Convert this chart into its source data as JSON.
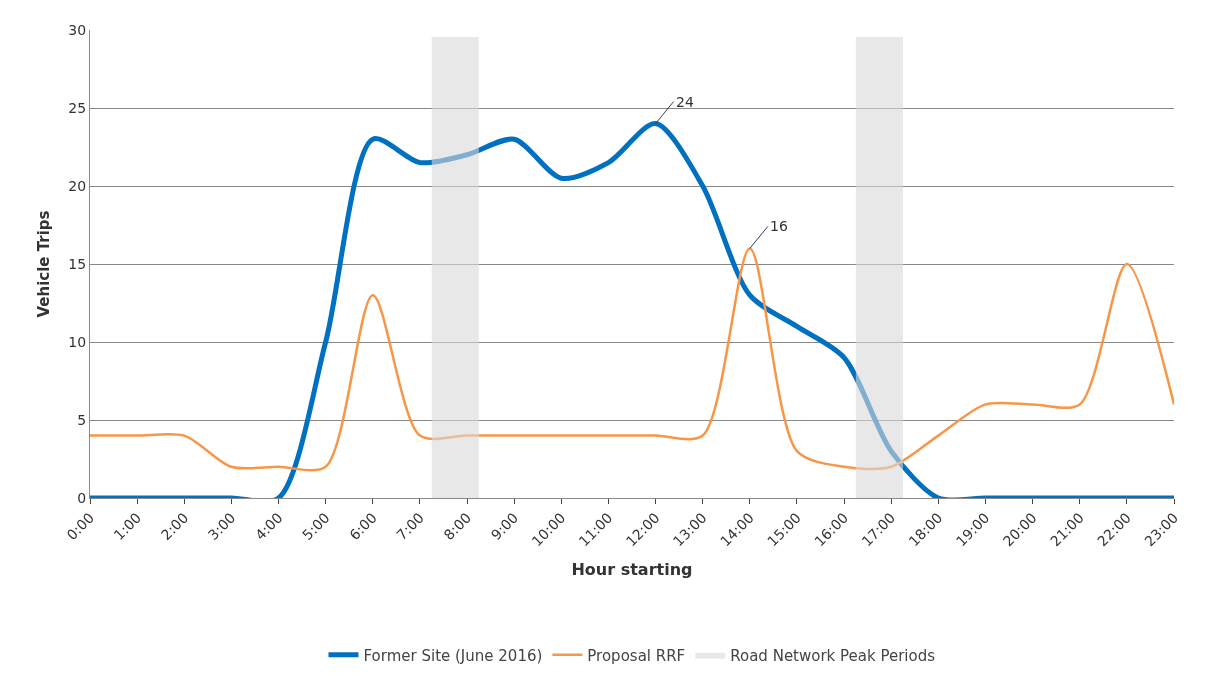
{
  "chart_data": {
    "type": "line",
    "xlabel": "Hour starting",
    "ylabel": "Vehicle Trips",
    "x": [
      0,
      1,
      2,
      3,
      4,
      5,
      6,
      7,
      8,
      9,
      10,
      11,
      12,
      13,
      14,
      15,
      16,
      17,
      18,
      19,
      20,
      21,
      22,
      23
    ],
    "xlim": [
      0,
      23
    ],
    "xticks": [
      {
        "value": 0,
        "label": "0:00"
      },
      {
        "value": 1,
        "label": "1:00"
      },
      {
        "value": 2,
        "label": "2:00"
      },
      {
        "value": 3,
        "label": "3:00"
      },
      {
        "value": 4,
        "label": "4:00"
      },
      {
        "value": 5,
        "label": "5:00"
      },
      {
        "value": 6,
        "label": "6:00"
      },
      {
        "value": 7,
        "label": "7:00"
      },
      {
        "value": 8,
        "label": "8:00"
      },
      {
        "value": 9,
        "label": "9:00"
      },
      {
        "value": 10,
        "label": "10:00"
      },
      {
        "value": 11,
        "label": "11:00"
      },
      {
        "value": 12,
        "label": "12:00"
      },
      {
        "value": 13,
        "label": "13:00"
      },
      {
        "value": 14,
        "label": "14:00"
      },
      {
        "value": 15,
        "label": "15:00"
      },
      {
        "value": 16,
        "label": "16:00"
      },
      {
        "value": 17,
        "label": "17:00"
      },
      {
        "value": 18,
        "label": "18:00"
      },
      {
        "value": 19,
        "label": "19:00"
      },
      {
        "value": 20,
        "label": "20:00"
      },
      {
        "value": 21,
        "label": "21:00"
      },
      {
        "value": 22,
        "label": "22:00"
      },
      {
        "value": 23,
        "label": "23:00"
      }
    ],
    "ylim": [
      0,
      30
    ],
    "yticks": [
      0,
      5,
      10,
      15,
      20,
      25,
      30
    ],
    "grid": "y",
    "legend": "bottom",
    "series": [
      {
        "name": "Former Site (June 2016)",
        "color": "#0070c0",
        "values": [
          0,
          0,
          0,
          0,
          0,
          10,
          23,
          21.5,
          22,
          23,
          20.5,
          21.5,
          24,
          20,
          13,
          11,
          9,
          3,
          0,
          0,
          0,
          0,
          0,
          0
        ]
      },
      {
        "name": "Proposal RRF",
        "color": "#f79646",
        "values": [
          4,
          4,
          4,
          2,
          2,
          2,
          13,
          4,
          4,
          4,
          4,
          4,
          4,
          4,
          16,
          3,
          2,
          2,
          4,
          6,
          6,
          6,
          15,
          6
        ]
      }
    ],
    "bands": [
      {
        "axis": "x",
        "from": 7.25,
        "to": 8.25,
        "label": "Road Network Peak Periods",
        "color": "#d9d9d9"
      },
      {
        "axis": "x",
        "from": 16.25,
        "to": 17.25,
        "color": "#d9d9d9"
      }
    ],
    "annotations": [
      {
        "text": "24",
        "x": 12,
        "y": 24
      },
      {
        "text": "16",
        "x": 14,
        "y": 16
      }
    ]
  }
}
